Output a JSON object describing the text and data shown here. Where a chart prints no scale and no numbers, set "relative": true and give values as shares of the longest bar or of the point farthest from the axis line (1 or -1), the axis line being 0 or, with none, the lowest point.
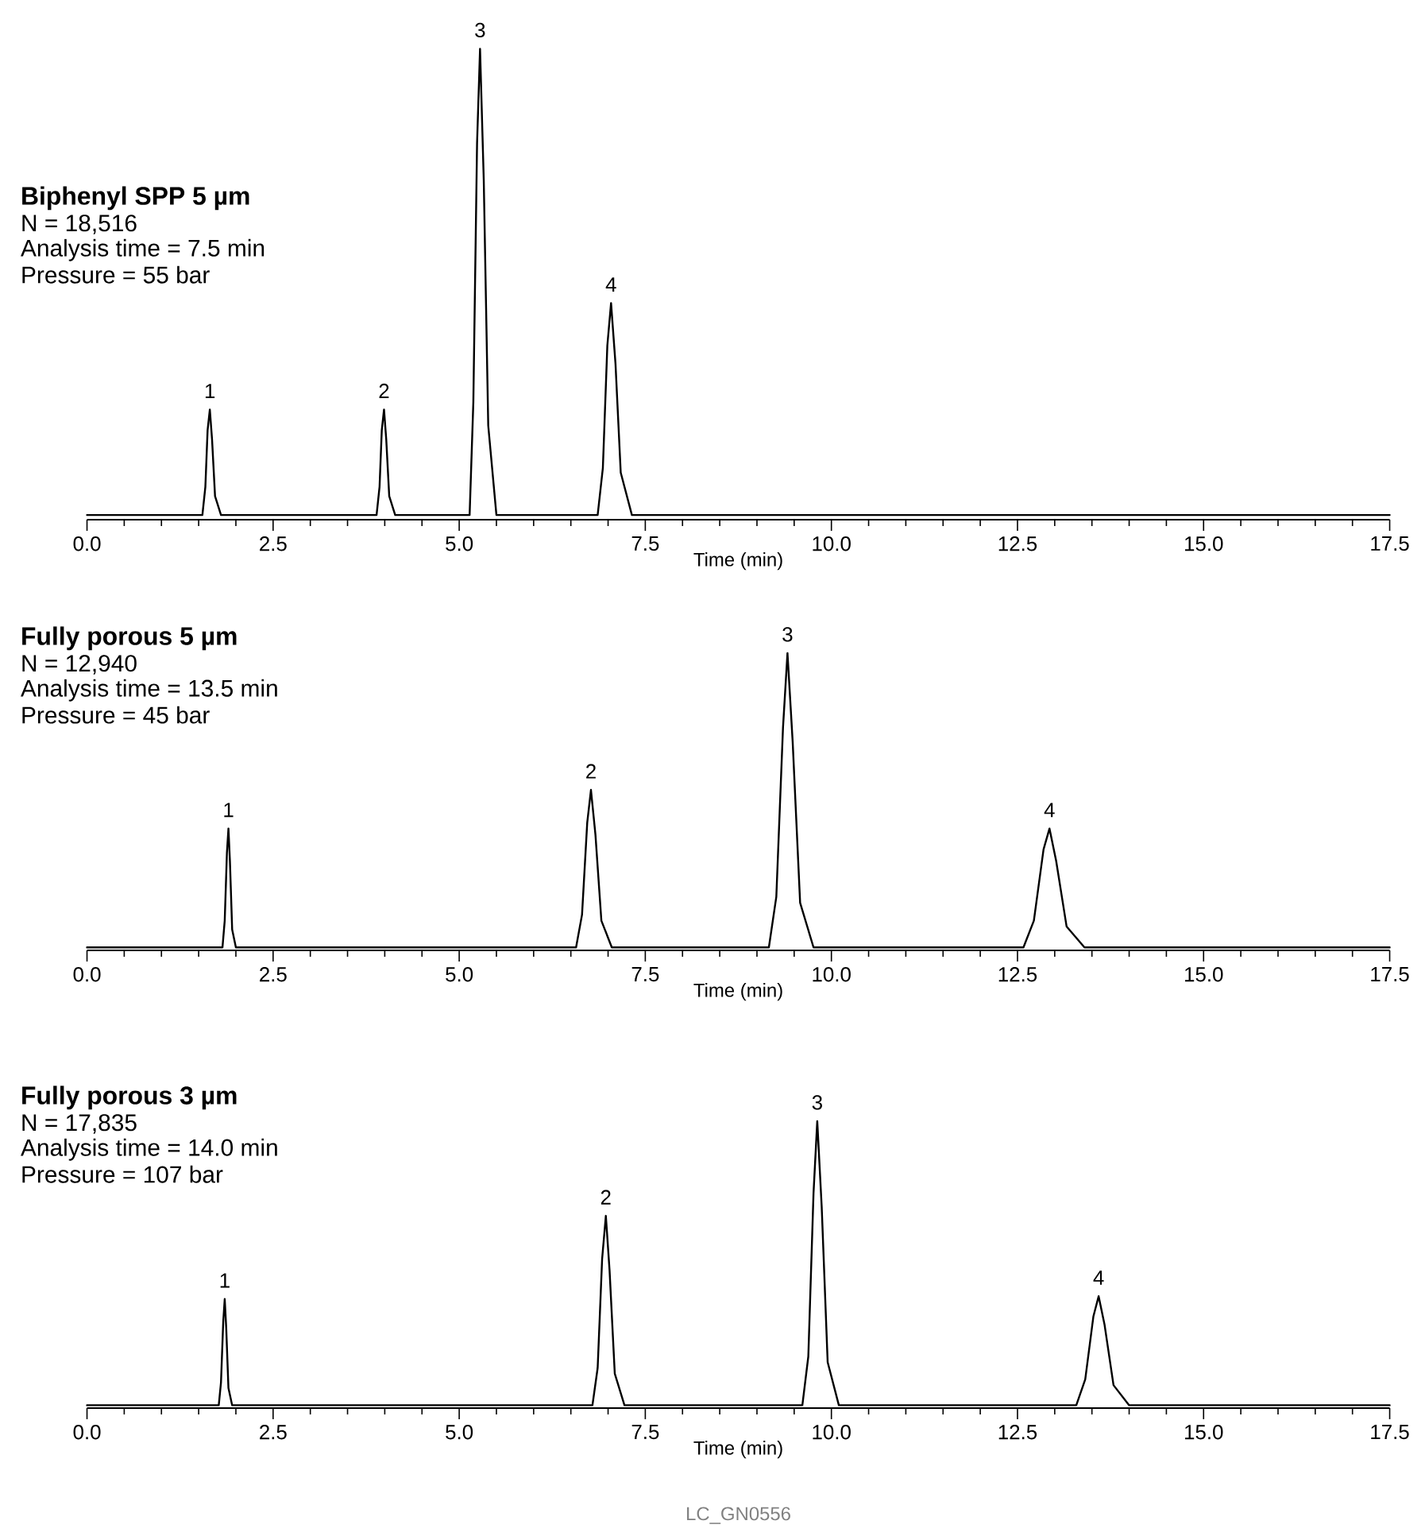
{
  "chart_data": [
    {
      "type": "line",
      "relative": true,
      "title": "Biphenyl SPP 5 µm",
      "xlabel": "Time (min)",
      "marker": "none",
      "tick_labels": "x",
      "xlim": [
        0,
        17.5
      ],
      "xticks": [
        {
          "value": 0,
          "label": "0.0"
        },
        {
          "value": 2.5,
          "label": "2.5"
        },
        {
          "value": 5,
          "label": "5.0"
        },
        {
          "value": 7.5,
          "label": "7.5"
        },
        {
          "value": 10,
          "label": "10.0"
        },
        {
          "value": 12.5,
          "label": "12.5"
        },
        {
          "value": 15,
          "label": "15.0"
        },
        {
          "value": 17.5,
          "label": "17.5"
        }
      ],
      "annotations": [
        "N = 18,516",
        "Analysis time = 7.5 min",
        "Pressure = 55 bar",
        {
          "text": "1",
          "x": 1.65,
          "y": 0.234
        },
        {
          "text": "2",
          "x": 3.99,
          "y": 0.234
        },
        {
          "text": "3",
          "x": 5.28,
          "y": 1.0
        },
        {
          "text": "4",
          "x": 7.04,
          "y": 0.46
        }
      ],
      "series": [
        {
          "color": "#000000",
          "x": [
            0,
            1.55,
            1.59,
            1.62,
            1.65,
            1.68,
            1.72,
            1.8,
            3.89,
            3.93,
            3.96,
            3.99,
            4.02,
            4.06,
            4.14,
            5.14,
            5.19,
            5.24,
            5.28,
            5.33,
            5.39,
            5.5,
            6.86,
            6.93,
            6.99,
            7.04,
            7.1,
            7.17,
            7.32,
            17.5
          ],
          "values": [
            0.01,
            0.01,
            0.07,
            0.19,
            0.234,
            0.17,
            0.05,
            0.01,
            0.01,
            0.07,
            0.19,
            0.234,
            0.17,
            0.05,
            0.01,
            0.01,
            0.25,
            0.8,
            1.0,
            0.72,
            0.2,
            0.01,
            0.01,
            0.11,
            0.37,
            0.46,
            0.33,
            0.1,
            0.01,
            0.01
          ]
        }
      ]
    },
    {
      "type": "line",
      "relative": true,
      "title": "Fully porous 5 µm",
      "xlabel": "Time (min)",
      "marker": "none",
      "tick_labels": "x",
      "xlim": [
        0,
        17.5
      ],
      "xticks": [
        {
          "value": 0,
          "label": "0.0"
        },
        {
          "value": 2.5,
          "label": "2.5"
        },
        {
          "value": 5,
          "label": "5.0"
        },
        {
          "value": 7.5,
          "label": "7.5"
        },
        {
          "value": 10,
          "label": "10.0"
        },
        {
          "value": 12.5,
          "label": "12.5"
        },
        {
          "value": 15,
          "label": "15.0"
        },
        {
          "value": 17.5,
          "label": "17.5"
        }
      ],
      "annotations": [
        "N = 12,940",
        "Analysis time = 13.5 min",
        "Pressure = 45 bar",
        {
          "text": "1",
          "x": 1.9,
          "y": 0.41
        },
        {
          "text": "2",
          "x": 6.77,
          "y": 0.54
        },
        {
          "text": "3",
          "x": 9.41,
          "y": 1.0
        },
        {
          "text": "4",
          "x": 12.93,
          "y": 0.41
        }
      ],
      "series": [
        {
          "color": "#000000",
          "x": [
            0,
            1.82,
            1.85,
            1.88,
            1.9,
            1.92,
            1.95,
            2.0,
            6.57,
            6.65,
            6.72,
            6.77,
            6.83,
            6.91,
            7.05,
            9.16,
            9.26,
            9.35,
            9.41,
            9.48,
            9.58,
            9.76,
            12.58,
            12.72,
            12.85,
            12.93,
            13.02,
            13.16,
            13.4,
            17.5
          ],
          "values": [
            0.01,
            0.01,
            0.1,
            0.33,
            0.41,
            0.3,
            0.07,
            0.01,
            0.01,
            0.12,
            0.43,
            0.54,
            0.39,
            0.1,
            0.01,
            0.01,
            0.18,
            0.75,
            1.0,
            0.7,
            0.16,
            0.01,
            0.01,
            0.1,
            0.34,
            0.41,
            0.3,
            0.08,
            0.01,
            0.01
          ]
        }
      ]
    },
    {
      "type": "line",
      "relative": true,
      "title": "Fully porous 3 µm",
      "xlabel": "Time (min)",
      "marker": "none",
      "tick_labels": "x",
      "xlim": [
        0,
        17.5
      ],
      "xticks": [
        {
          "value": 0,
          "label": "0.0"
        },
        {
          "value": 2.5,
          "label": "2.5"
        },
        {
          "value": 5,
          "label": "5.0"
        },
        {
          "value": 7.5,
          "label": "7.5"
        },
        {
          "value": 10,
          "label": "10.0"
        },
        {
          "value": 12.5,
          "label": "12.5"
        },
        {
          "value": 15,
          "label": "15.0"
        },
        {
          "value": 17.5,
          "label": "17.5"
        }
      ],
      "annotations": [
        "N = 17,835",
        "Analysis time = 14.0 min",
        "Pressure = 107 bar",
        {
          "text": "1",
          "x": 1.85,
          "y": 0.38
        },
        {
          "text": "2",
          "x": 6.97,
          "y": 0.67
        },
        {
          "text": "3",
          "x": 9.81,
          "y": 1.0
        },
        {
          "text": "4",
          "x": 13.59,
          "y": 0.39
        },
        "LC_GN0556"
      ],
      "series": [
        {
          "color": "#000000",
          "x": [
            0,
            1.77,
            1.8,
            1.83,
            1.85,
            1.87,
            1.9,
            1.95,
            6.79,
            6.86,
            6.92,
            6.97,
            7.02,
            7.09,
            7.22,
            9.61,
            9.69,
            9.76,
            9.81,
            9.87,
            9.95,
            10.1,
            13.29,
            13.41,
            13.52,
            13.59,
            13.67,
            13.79,
            14.0,
            17.5
          ],
          "values": [
            0.01,
            0.01,
            0.09,
            0.3,
            0.38,
            0.28,
            0.07,
            0.01,
            0.01,
            0.14,
            0.52,
            0.67,
            0.48,
            0.12,
            0.01,
            0.01,
            0.18,
            0.75,
            1.0,
            0.7,
            0.16,
            0.01,
            0.01,
            0.1,
            0.32,
            0.39,
            0.29,
            0.08,
            0.01,
            0.01
          ]
        }
      ]
    }
  ]
}
